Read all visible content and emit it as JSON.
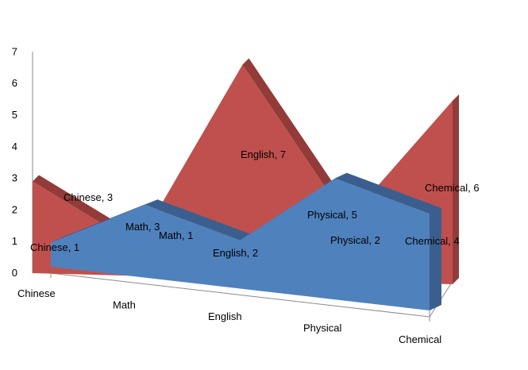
{
  "chart_data": {
    "type": "area",
    "variant": "3d-area",
    "categories": [
      "Chinese",
      "Math",
      "English",
      "Physical",
      "Chemical"
    ],
    "series": [
      {
        "values": [
          3,
          1,
          7,
          2,
          6
        ],
        "color": "#c0504d",
        "side_color": "#923b39"
      },
      {
        "values": [
          1,
          3,
          2,
          5,
          4
        ],
        "color": "#4f81bd",
        "side_color": "#3a5f8e"
      }
    ],
    "data_labels": [
      [
        "Chinese, 3",
        "Math, 1",
        "English, 7",
        "Physical, 2",
        "Chemical, 6"
      ],
      [
        "Chinese, 1",
        "Math, 3",
        "English, 2",
        "Physical, 5",
        "Chemical, 4"
      ]
    ],
    "yticks": [
      "0",
      "1",
      "2",
      "3",
      "4",
      "5",
      "6",
      "7"
    ],
    "ylim": [
      0,
      7
    ],
    "legend": "none",
    "grid": false
  }
}
